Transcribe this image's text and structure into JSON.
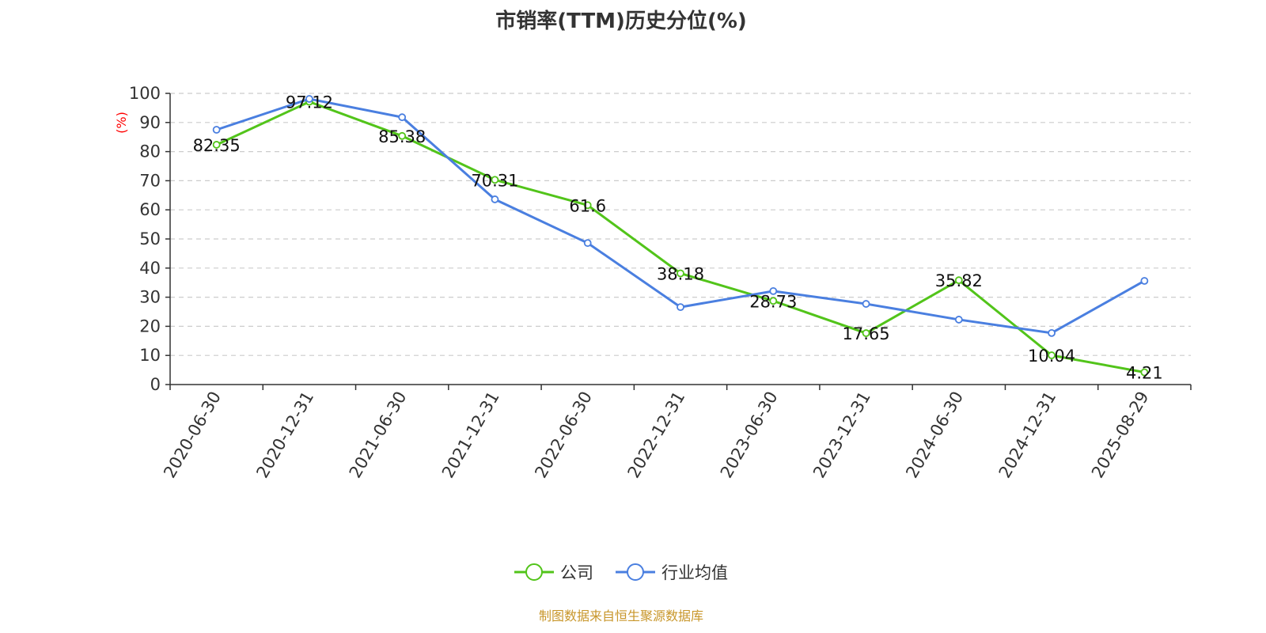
{
  "chart_data": {
    "type": "line",
    "title": "市销率(TTM)历史分位(%)",
    "ylabel": "(%)",
    "ylim": [
      0,
      100
    ],
    "yticks": [
      0,
      10,
      20,
      30,
      40,
      50,
      60,
      70,
      80,
      90,
      100
    ],
    "grid": true,
    "legend_placement": "bottom",
    "categories": [
      "2020-06-30",
      "2020-12-31",
      "2021-06-30",
      "2021-12-31",
      "2022-06-30",
      "2022-12-31",
      "2023-06-30",
      "2023-12-31",
      "2024-06-30",
      "2024-12-31",
      "2025-08-29"
    ],
    "series": [
      {
        "name": "公司",
        "color": "#52c41a",
        "labels": true,
        "values": [
          82.35,
          97.12,
          85.38,
          70.31,
          61.6,
          38.18,
          28.73,
          17.65,
          35.82,
          10.04,
          4.21
        ]
      },
      {
        "name": "行业均值",
        "color": "#4a7fe0",
        "labels": false,
        "values": [
          87.5,
          98.1,
          91.8,
          63.6,
          48.6,
          26.6,
          32.1,
          27.7,
          22.3,
          17.7,
          35.6
        ]
      }
    ]
  },
  "footer": "制图数据来自恒生聚源数据库"
}
